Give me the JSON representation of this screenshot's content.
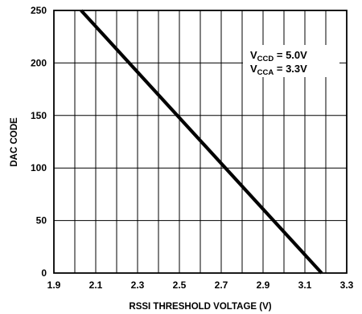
{
  "chart_data": {
    "type": "line",
    "xlabel": "RSSI THRESHOLD VOLTAGE (V)",
    "ylabel": "DAC CODE",
    "xlim": [
      1.9,
      3.3
    ],
    "ylim": [
      0,
      250
    ],
    "x_ticks": [
      "1.9",
      "2.1",
      "2.3",
      "2.5",
      "2.7",
      "2.9",
      "3.1",
      "3.3"
    ],
    "y_ticks": [
      "0",
      "50",
      "100",
      "150",
      "200",
      "250"
    ],
    "x_minor_grid_step": 0.1,
    "y_grid_step": 50,
    "grid": true,
    "series": [
      {
        "x": [
          2.03,
          3.18
        ],
        "y": [
          250,
          0
        ],
        "color": "#000000"
      }
    ],
    "annotations": [
      {
        "main": "V",
        "sub": "CCD",
        "rest": " = 5.0V"
      },
      {
        "main": "V",
        "sub": "CCA",
        "rest": " = 3.3V"
      }
    ]
  }
}
